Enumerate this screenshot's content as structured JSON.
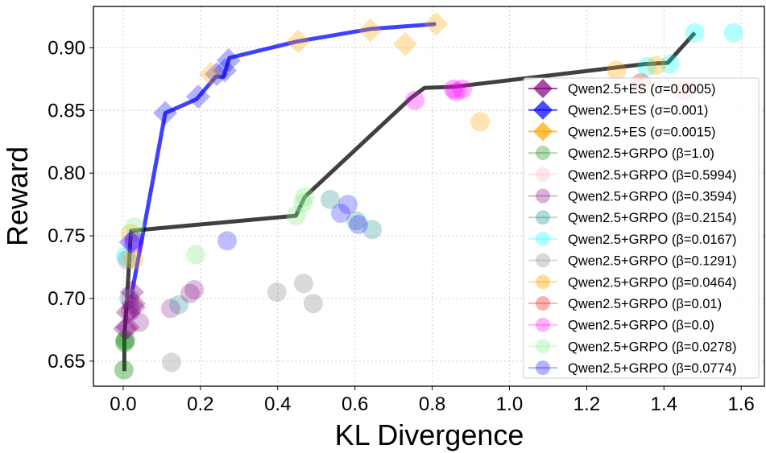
{
  "chart_data": {
    "type": "scatter",
    "xlabel": "KL Divergence",
    "ylabel": "Reward",
    "xlim": [
      -0.077,
      1.66
    ],
    "ylim": [
      0.63,
      0.933
    ],
    "xticks": [
      "0.0",
      "0.2",
      "0.4",
      "0.6",
      "0.8",
      "1.0",
      "1.2",
      "1.4",
      "1.6"
    ],
    "yticks": [
      "0.65",
      "0.70",
      "0.75",
      "0.80",
      "0.85",
      "0.90"
    ],
    "grid": true,
    "legend_position": "center-right",
    "series": [
      {
        "name": "Qwen2.5+ES (σ=0.0005)",
        "marker": "diamond",
        "color": "#800080",
        "alpha": 0.35,
        "points": [
          [
            0.023,
            0.705
          ],
          [
            0.027,
            0.696
          ],
          [
            0.027,
            0.693
          ],
          [
            0.012,
            0.689
          ],
          [
            0.012,
            0.677
          ],
          [
            0.005,
            0.676
          ]
        ]
      },
      {
        "name": "Qwen2.5+ES (σ=0.001)",
        "marker": "diamond",
        "color": "#0000ff",
        "alpha": 0.3,
        "points": [
          [
            0.109,
            0.848
          ],
          [
            0.194,
            0.861
          ],
          [
            0.242,
            0.879
          ],
          [
            0.263,
            0.882
          ],
          [
            0.273,
            0.89
          ],
          [
            0.02,
            0.745
          ]
        ]
      },
      {
        "name": "Qwen2.5+ES (σ=0.0015)",
        "marker": "diamond",
        "color": "#ffa500",
        "alpha": 0.3,
        "points": [
          [
            0.227,
            0.879
          ],
          [
            0.453,
            0.905
          ],
          [
            0.64,
            0.914
          ],
          [
            0.73,
            0.903
          ],
          [
            0.81,
            0.919
          ]
        ]
      },
      {
        "name": "Qwen2.5+GRPO (β=1.0)",
        "marker": "circle",
        "color": "#008000",
        "alpha": 0.35,
        "points": [
          [
            0.002,
            0.643
          ],
          [
            0.004,
            0.665
          ],
          [
            0.006,
            0.667
          ]
        ]
      },
      {
        "name": "Qwen2.5+GRPO (β=0.5994)",
        "marker": "circle",
        "color": "#ffc0cb",
        "alpha": 0.4,
        "points": [
          [
            1.47,
            0.866
          ],
          [
            0.02,
            0.7
          ]
        ]
      },
      {
        "name": "Qwen2.5+GRPO (β=0.3594)",
        "marker": "circle",
        "color": "#800080",
        "alpha": 0.25,
        "points": [
          [
            0.123,
            0.692
          ],
          [
            0.173,
            0.704
          ],
          [
            0.184,
            0.707
          ],
          [
            0.042,
            0.681
          ],
          [
            0.02,
            0.69
          ]
        ]
      },
      {
        "name": "Qwen2.5+GRPO (β=0.2154)",
        "marker": "circle",
        "color": "#008080",
        "alpha": 0.25,
        "points": [
          [
            0.144,
            0.695
          ],
          [
            0.536,
            0.779
          ],
          [
            0.603,
            0.762
          ],
          [
            0.645,
            0.755
          ],
          [
            0.015,
            0.7
          ]
        ]
      },
      {
        "name": "Qwen2.5+GRPO (β=0.0167)",
        "marker": "circle",
        "color": "#00ffff",
        "alpha": 0.3,
        "points": [
          [
            1.48,
            0.912
          ],
          [
            1.58,
            0.912
          ],
          [
            1.356,
            0.885
          ],
          [
            1.416,
            0.887
          ],
          [
            0.006,
            0.734
          ]
        ]
      },
      {
        "name": "Qwen2.5+GRPO (β=0.1291)",
        "marker": "circle",
        "color": "#808080",
        "alpha": 0.3,
        "points": [
          [
            0.125,
            0.649
          ],
          [
            0.398,
            0.705
          ],
          [
            0.467,
            0.712
          ],
          [
            0.492,
            0.696
          ],
          [
            0.01,
            0.731
          ]
        ]
      },
      {
        "name": "Qwen2.5+GRPO (β=0.0464)",
        "marker": "circle",
        "color": "#ffa500",
        "alpha": 0.3,
        "points": [
          [
            1.277,
            0.882
          ],
          [
            1.38,
            0.886
          ],
          [
            0.924,
            0.841
          ],
          [
            0.027,
            0.731
          ],
          [
            0.019,
            0.752
          ]
        ]
      },
      {
        "name": "Qwen2.5+GRPO (β=0.01)",
        "marker": "circle",
        "color": "#ff0000",
        "alpha": 0.3,
        "points": [
          [
            1.34,
            0.872
          ],
          [
            1.45,
            0.866
          ]
        ]
      },
      {
        "name": "Qwen2.5+GRPO (β=0.0)",
        "marker": "circle",
        "color": "#ff00ff",
        "alpha": 0.3,
        "points": [
          [
            0.755,
            0.858
          ],
          [
            0.855,
            0.867
          ],
          [
            0.878,
            0.867
          ],
          [
            0.862,
            0.865
          ],
          [
            0.027,
            0.744
          ]
        ]
      },
      {
        "name": "Qwen2.5+GRPO (β=0.0278)",
        "marker": "circle",
        "color": "#90ee90",
        "alpha": 0.35,
        "points": [
          [
            0.188,
            0.735
          ],
          [
            0.448,
            0.766
          ],
          [
            0.465,
            0.776
          ],
          [
            0.47,
            0.781
          ],
          [
            0.029,
            0.757
          ]
        ]
      },
      {
        "name": "Qwen2.5+GRPO (β=0.0774)",
        "marker": "circle",
        "color": "#0000ff",
        "alpha": 0.25,
        "points": [
          [
            0.269,
            0.746
          ],
          [
            0.563,
            0.768
          ],
          [
            0.582,
            0.775
          ],
          [
            0.609,
            0.759
          ],
          [
            0.029,
            0.746
          ]
        ]
      }
    ],
    "frontiers": [
      {
        "color": "#0000ff",
        "alpha": 0.75,
        "points": [
          [
            0.02,
            0.7
          ],
          [
            0.109,
            0.848
          ],
          [
            0.19,
            0.859
          ],
          [
            0.24,
            0.877
          ],
          [
            0.26,
            0.877
          ],
          [
            0.275,
            0.892
          ],
          [
            0.45,
            0.905
          ],
          [
            0.64,
            0.915
          ],
          [
            0.81,
            0.919
          ]
        ]
      },
      {
        "color": "#000000",
        "alpha": 0.75,
        "points": [
          [
            0.003,
            0.642
          ],
          [
            0.003,
            0.67
          ],
          [
            0.01,
            0.7
          ],
          [
            0.02,
            0.754
          ],
          [
            0.447,
            0.766
          ],
          [
            0.47,
            0.781
          ],
          [
            0.745,
            0.86
          ],
          [
            0.78,
            0.868
          ],
          [
            0.86,
            0.869
          ],
          [
            1.35,
            0.887
          ],
          [
            1.41,
            0.888
          ],
          [
            1.48,
            0.912
          ]
        ]
      }
    ]
  }
}
